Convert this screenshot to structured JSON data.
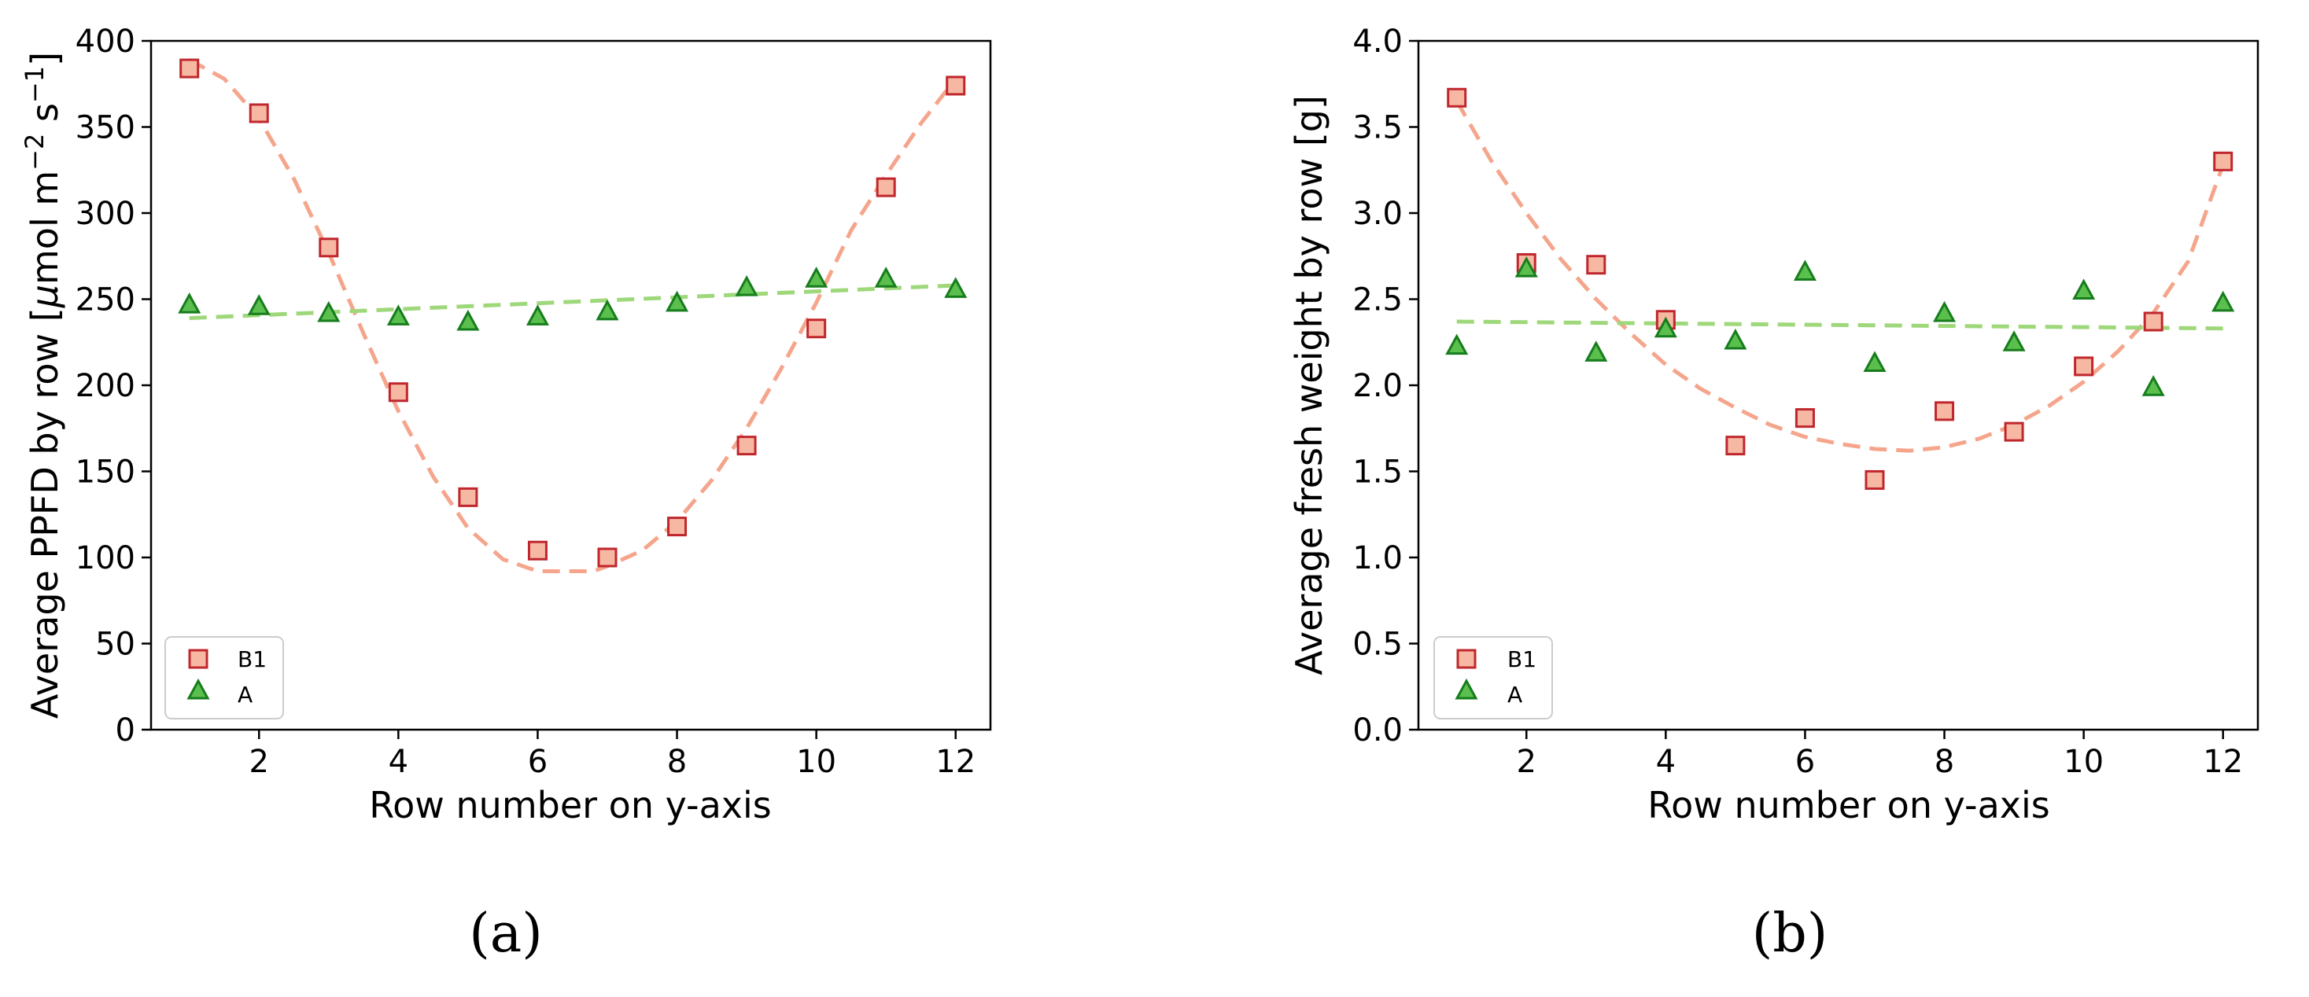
{
  "figure": {
    "panel_labels": {
      "a": "(a)",
      "b": "(b)"
    },
    "marker_colors": {
      "square_fill": "#f7b8a3",
      "square_edge": "#c0272d",
      "triangle_fill": "#5bbf4e",
      "triangle_edge": "#167d1c",
      "fit_b1": "#f5a58c",
      "fit_a": "#9ed87a"
    }
  },
  "chart_data": [
    {
      "id": "a",
      "type": "scatter",
      "title": "",
      "xlabel": "Row number on y-axis",
      "ylabel_main": "Average PPFD by row [",
      "ylabel_mu": "μ",
      "ylabel_unit": "mol m",
      "ylabel_exp1": "−2",
      "ylabel_s": " s",
      "ylabel_exp2": "−1",
      "ylabel_close": "]",
      "xlim": [
        0.45,
        12.5
      ],
      "ylim": [
        0,
        400
      ],
      "xticks": [
        2,
        4,
        6,
        8,
        10,
        12
      ],
      "xtick_labels": [
        "2",
        "4",
        "6",
        "8",
        "10",
        "12"
      ],
      "yticks": [
        0,
        50,
        100,
        150,
        200,
        250,
        300,
        350,
        400
      ],
      "ytick_labels": [
        "0",
        "50",
        "100",
        "150",
        "200",
        "250",
        "300",
        "350",
        "400"
      ],
      "legend": {
        "position": "lower-left",
        "entries": [
          "B1",
          "A"
        ]
      },
      "series": [
        {
          "name": "B1",
          "marker": "square",
          "x": [
            1,
            2,
            3,
            4,
            5,
            6,
            7,
            8,
            9,
            10,
            11,
            12
          ],
          "y": [
            384,
            358,
            280,
            196,
            135,
            104,
            100,
            118,
            165,
            233,
            315,
            374
          ],
          "fit_x": [
            1,
            1.5,
            2,
            2.5,
            3,
            3.5,
            4,
            4.5,
            5,
            5.5,
            6,
            6.5,
            6.8,
            7,
            7.5,
            8,
            8.5,
            9,
            9.5,
            10,
            10.5,
            11,
            11.5,
            12
          ],
          "fit_y": [
            389,
            378,
            355,
            320,
            277,
            230,
            185,
            147,
            117,
            99,
            92,
            92,
            92,
            95,
            104,
            121,
            145,
            175,
            210,
            248,
            290,
            322,
            352,
            378
          ]
        },
        {
          "name": "A",
          "marker": "triangle",
          "x": [
            1,
            2,
            3,
            4,
            5,
            6,
            7,
            8,
            9,
            10,
            11,
            12
          ],
          "y": [
            247,
            246,
            242,
            240,
            237,
            240,
            243,
            248,
            257,
            262,
            262,
            256
          ],
          "fit_x": [
            1,
            12
          ],
          "fit_y": [
            239,
            258
          ]
        }
      ]
    },
    {
      "id": "b",
      "type": "scatter",
      "title": "",
      "xlabel": "Row number on y-axis",
      "ylabel_main": "Average fresh weight by row [g]",
      "xlim": [
        0.45,
        12.5
      ],
      "ylim": [
        0.0,
        4.0
      ],
      "xticks": [
        2,
        4,
        6,
        8,
        10,
        12
      ],
      "xtick_labels": [
        "2",
        "4",
        "6",
        "8",
        "10",
        "12"
      ],
      "yticks": [
        0,
        0.5,
        1.0,
        1.5,
        2.0,
        2.5,
        3.0,
        3.5,
        4.0
      ],
      "ytick_labels": [
        "0.0",
        "0.5",
        "1.0",
        "1.5",
        "2.0",
        "2.5",
        "3.0",
        "3.5",
        "4.0"
      ],
      "legend": {
        "position": "lower-left",
        "entries": [
          "B1",
          "A"
        ]
      },
      "series": [
        {
          "name": "B1",
          "marker": "square",
          "x": [
            1,
            2,
            3,
            4,
            5,
            6,
            7,
            8,
            9,
            10,
            11,
            12
          ],
          "y": [
            3.67,
            2.71,
            2.7,
            2.38,
            1.65,
            1.81,
            1.45,
            1.85,
            1.73,
            2.11,
            2.37,
            3.3
          ],
          "fit_x": [
            1,
            1.5,
            2,
            2.5,
            3,
            3.5,
            4,
            4.5,
            5,
            5.5,
            6,
            6.5,
            7,
            7.5,
            8,
            8.5,
            9,
            9.5,
            10,
            10.5,
            11,
            11.5,
            12
          ],
          "fit_y": [
            3.65,
            3.3,
            3.0,
            2.73,
            2.5,
            2.3,
            2.12,
            1.98,
            1.87,
            1.77,
            1.7,
            1.66,
            1.63,
            1.62,
            1.64,
            1.69,
            1.77,
            1.88,
            2.02,
            2.2,
            2.42,
            2.72,
            3.28
          ]
        },
        {
          "name": "A",
          "marker": "triangle",
          "x": [
            1,
            2,
            3,
            4,
            5,
            6,
            7,
            8,
            9,
            10,
            11,
            12
          ],
          "y": [
            2.23,
            2.68,
            2.19,
            2.33,
            2.26,
            2.66,
            2.13,
            2.42,
            2.25,
            2.55,
            1.99,
            2.48
          ],
          "fit_x": [
            1,
            12
          ],
          "fit_y": [
            2.37,
            2.33
          ]
        }
      ]
    }
  ]
}
